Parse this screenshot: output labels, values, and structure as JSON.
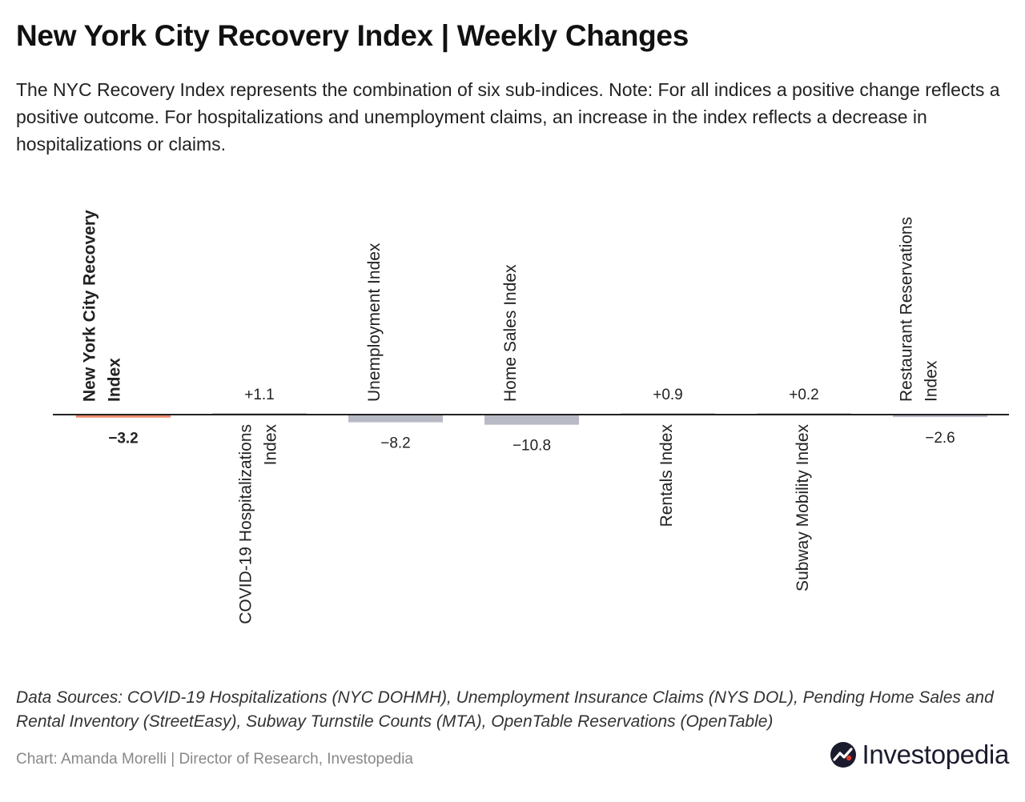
{
  "header": {
    "title": "New York City Recovery Index | Weekly Changes",
    "subtitle": "The NYC Recovery Index represents the combination of six sub-indices. Note: For all indices a positive change reflects a positive outcome. For hospitalizations and unemployment claims, an increase in the index reflects a decrease in hospitalizations or claims."
  },
  "chart_data": {
    "type": "bar",
    "categories": [
      "New York City Recovery Index",
      "COVID-19 Hospitalizations Index",
      "Unemployment Index",
      "Home Sales Index",
      "Rentals Index",
      "Subway Mobility Index",
      "Restaurant Reservations Index"
    ],
    "values": [
      -3.2,
      1.1,
      -8.2,
      -10.8,
      0.9,
      0.2,
      -2.6
    ],
    "value_labels": [
      "−3.2",
      "+1.1",
      "−8.2",
      "−10.8",
      "+0.9",
      "+0.2",
      "−2.6"
    ],
    "highlight_index": 0,
    "colors": {
      "highlight": "#ef8a6c",
      "negative": "#b8bac6",
      "positive": "#c9cbd3",
      "axis": "#222222"
    }
  },
  "footer": {
    "sources": "Data Sources: COVID-19 Hospitalizations (NYC DOHMH), Unemployment Insurance Claims (NYS DOL), Pending Home Sales and Rental Inventory (StreetEasy), Subway Turnstile Counts (MTA), OpenTable Reservations (OpenTable)",
    "credit": "Chart: Amanda Morelli | Director of Research, Investopedia",
    "logo_text": "Investopedia",
    "logo_icon": "investopedia-logo-icon"
  }
}
